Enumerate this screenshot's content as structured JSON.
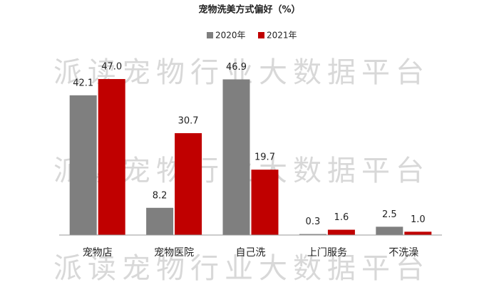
{
  "chart_data": {
    "type": "bar",
    "title": "宠物洗美方式偏好（%）",
    "watermark": "派读宠物行业大数据平台",
    "categories": [
      "宠物店",
      "宠物医院",
      "自己洗",
      "上门服务",
      "不洗澡"
    ],
    "series": [
      {
        "name": "2020年",
        "color": "#7f7f7f",
        "values": [
          42.1,
          8.2,
          46.9,
          0.3,
          2.5
        ]
      },
      {
        "name": "2021年",
        "color": "#c00000",
        "values": [
          47,
          30.7,
          19.7,
          1.6,
          1
        ],
        "value_labels": [
          "47.0",
          "30.7",
          "19.7",
          "1.6",
          "1.0"
        ]
      }
    ],
    "ylim": [
      0,
      50
    ],
    "legend": "top"
  }
}
